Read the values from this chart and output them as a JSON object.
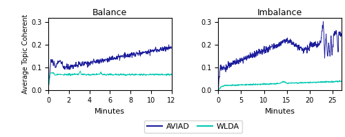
{
  "title_left": "Balance",
  "title_right": "Imbalance",
  "ylabel": "Average Topic Coherent",
  "xlabel": "Minutes",
  "aviad_color": "#1c1c9c",
  "wlda_color": "#00c8b0",
  "ylim": [
    0.0,
    0.32
  ],
  "yticks": [
    0.0,
    0.1,
    0.2,
    0.3
  ],
  "xlim_left": [
    0,
    12
  ],
  "xticks_left": [
    0,
    2,
    4,
    6,
    8,
    10,
    12
  ],
  "xlim_right": [
    0,
    27
  ],
  "xticks_right": [
    0,
    5,
    10,
    15,
    20,
    25
  ],
  "legend_labels": [
    "AVIAD",
    "WLDA"
  ]
}
